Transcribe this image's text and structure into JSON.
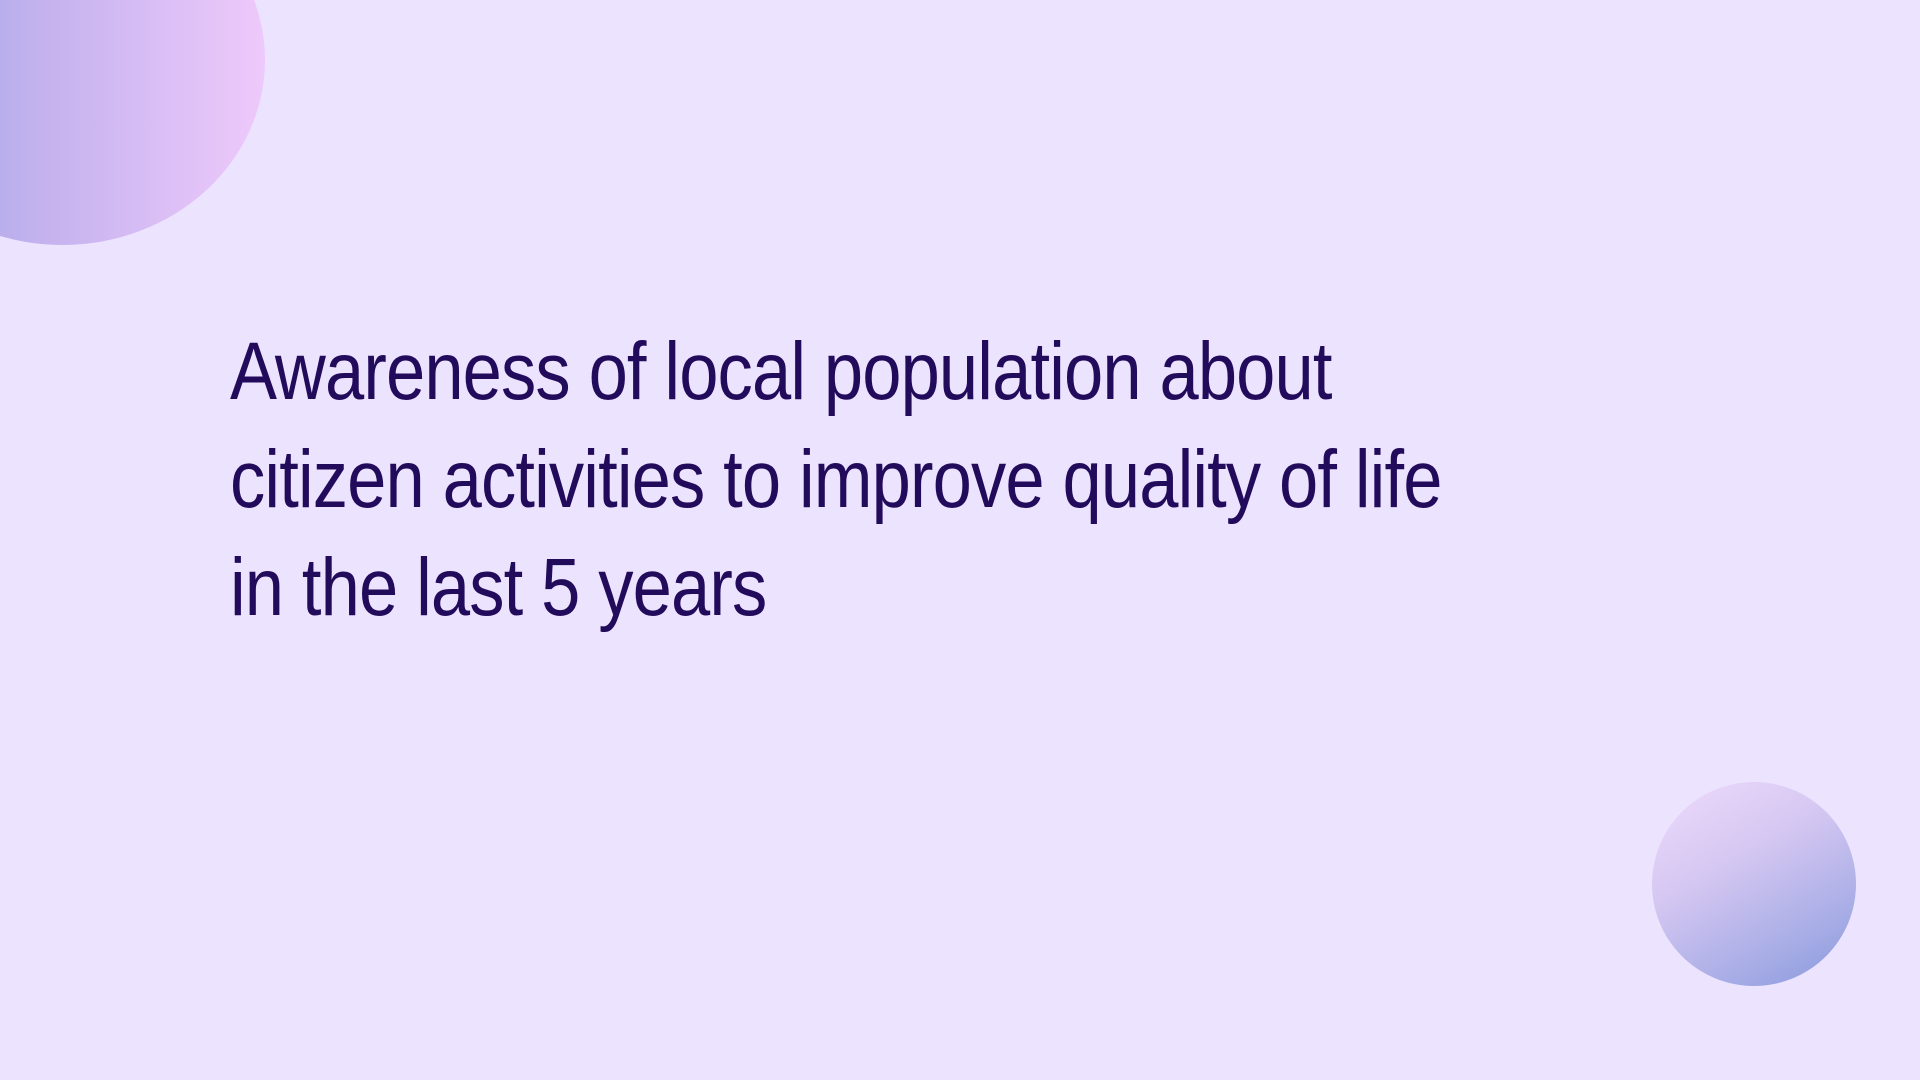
{
  "slide": {
    "title": "Awareness of local population about citizen activities to improve quality of life in the last 5 years"
  },
  "colors": {
    "background": "#ece3ff",
    "title_text": "#230b5c",
    "decor_top_left": [
      "#94a5e3",
      "#eec9fb"
    ],
    "decor_bottom_right": [
      "#f0dcfc",
      "#8597db"
    ]
  }
}
